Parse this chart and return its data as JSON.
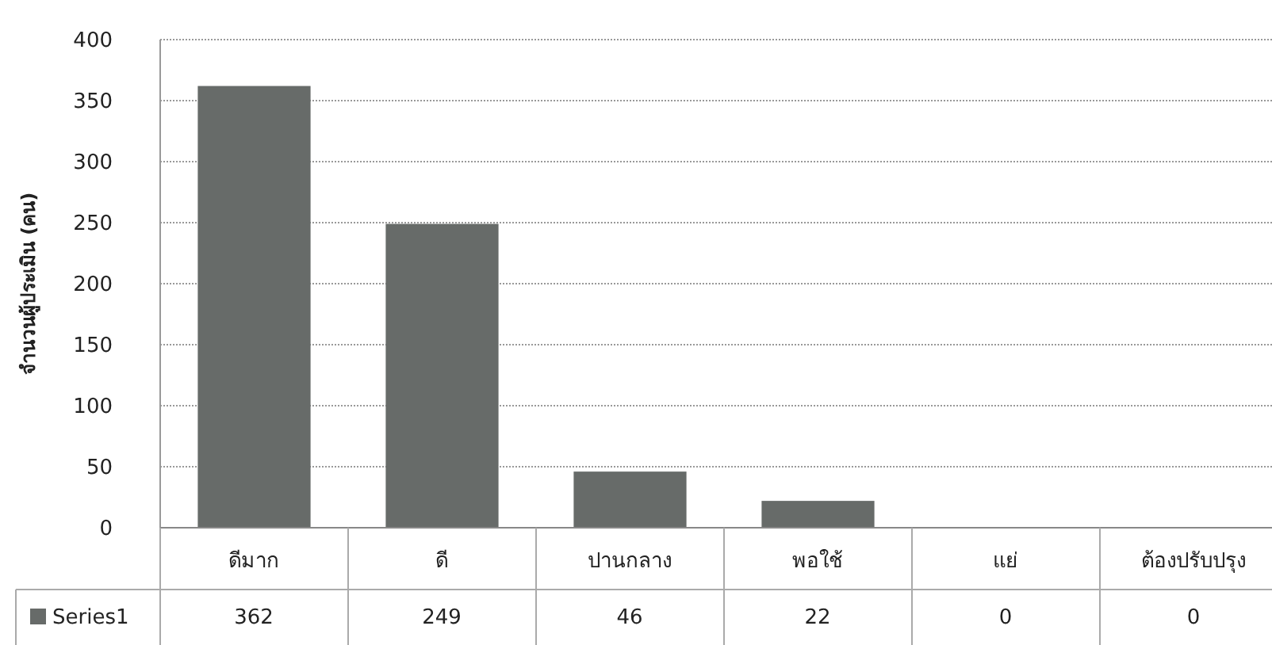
{
  "chart_data": {
    "type": "bar",
    "ylabel": "จำนวนผู้ประเมิน (คน)",
    "categories": [
      "ดีมาก",
      "ดี",
      "ปานกลาง",
      "พอใช้",
      "แย่",
      "ต้องปรับปรุง"
    ],
    "series": [
      {
        "name": "Series1",
        "color": "#676b69",
        "values": [
          362,
          249,
          46,
          22,
          0,
          0
        ]
      }
    ],
    "ylim": [
      0,
      400
    ],
    "yticks": [
      0,
      50,
      100,
      150,
      200,
      250,
      300,
      350,
      400
    ],
    "grid": "y",
    "data_labels": true,
    "legend": "bottom"
  }
}
